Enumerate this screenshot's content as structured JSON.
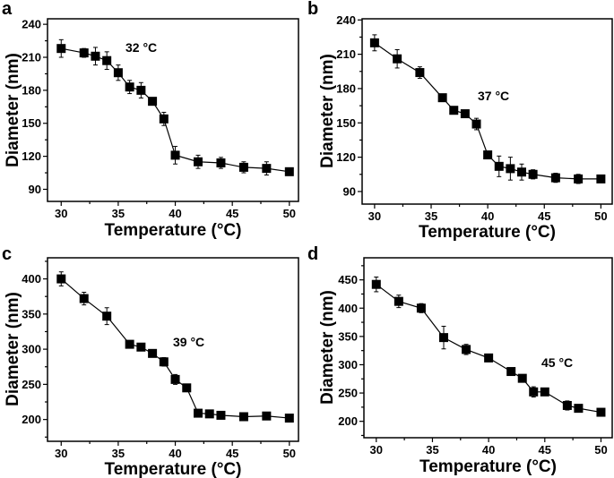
{
  "chart_data": [
    {
      "panel_label": "a",
      "type": "line",
      "xlabel": "Temperature (°C)",
      "ylabel": "Diameter (nm)",
      "annotation": "32 °C",
      "xlim": [
        28.8,
        50.8
      ],
      "ylim": [
        79,
        245
      ],
      "xticks": [
        30,
        35,
        40,
        45,
        50
      ],
      "yticks": [
        90,
        120,
        150,
        180,
        210,
        240
      ],
      "grid": false,
      "marker": "square",
      "color": "#000000",
      "x": [
        30,
        32,
        33,
        34,
        35,
        36,
        37,
        38,
        39,
        40,
        42,
        44,
        46,
        48,
        50
      ],
      "y": [
        218,
        214,
        211,
        207,
        196,
        183,
        180,
        170,
        154,
        121,
        115,
        114,
        110,
        109,
        106
      ],
      "yerr": [
        8,
        4,
        8,
        8,
        7,
        6,
        7,
        2,
        6,
        8,
        6,
        5,
        5,
        6,
        3
      ]
    },
    {
      "panel_label": "b",
      "type": "line",
      "xlabel": "Temperature (°C)",
      "ylabel": "Diameter (nm)",
      "annotation": "37 °C",
      "xlim": [
        28.9,
        51
      ],
      "ylim": [
        79,
        241
      ],
      "xticks": [
        30,
        35,
        40,
        45,
        50
      ],
      "yticks": [
        90,
        120,
        150,
        180,
        210,
        240
      ],
      "grid": false,
      "marker": "square",
      "color": "#000000",
      "x": [
        30,
        32,
        34,
        36,
        37,
        38,
        39,
        40,
        41,
        42,
        43,
        44,
        46,
        48,
        50
      ],
      "y": [
        220,
        206,
        194,
        172,
        161,
        158,
        149,
        122,
        112,
        110,
        107,
        105,
        102,
        101,
        101
      ],
      "yerr": [
        7,
        8,
        5,
        2,
        2,
        2,
        5,
        2,
        9,
        10,
        7,
        4,
        4,
        4,
        2
      ]
    },
    {
      "panel_label": "c",
      "type": "line",
      "xlabel": "Temperature (°C)",
      "ylabel": "Diameter (nm)",
      "annotation": "39 °C",
      "xlim": [
        28.8,
        50.8
      ],
      "ylim": [
        169,
        430
      ],
      "xticks": [
        30,
        35,
        40,
        45,
        50
      ],
      "yticks": [
        200,
        250,
        300,
        350,
        400
      ],
      "grid": false,
      "marker": "square",
      "color": "#000000",
      "x": [
        30,
        32,
        34,
        36,
        37,
        38,
        39,
        40,
        41,
        42,
        43,
        44,
        46,
        48,
        50
      ],
      "y": [
        400,
        372,
        347,
        307,
        303,
        294,
        282,
        257,
        245,
        209,
        208,
        206,
        204,
        205,
        202
      ],
      "yerr": [
        10,
        9,
        12,
        2,
        2,
        2,
        6,
        7,
        5,
        2,
        2,
        2,
        2,
        2,
        2
      ]
    },
    {
      "panel_label": "d",
      "type": "line",
      "xlabel": "Temperature (°C)",
      "ylabel": "Diameter (nm)",
      "annotation": "45 °C",
      "xlim": [
        28.9,
        51
      ],
      "ylim": [
        171,
        489
      ],
      "xticks": [
        30,
        35,
        40,
        45,
        50
      ],
      "yticks": [
        200,
        250,
        300,
        350,
        400,
        450
      ],
      "grid": false,
      "marker": "square",
      "color": "#000000",
      "x": [
        30,
        32,
        34,
        36,
        38,
        40,
        42,
        43,
        44,
        45,
        47,
        48,
        50
      ],
      "y": [
        442,
        412,
        400,
        348,
        327,
        312,
        288,
        276,
        252,
        252,
        228,
        223,
        216
      ],
      "yerr": [
        13,
        11,
        8,
        20,
        9,
        3,
        3,
        3,
        9,
        3,
        8,
        3,
        3
      ]
    }
  ]
}
